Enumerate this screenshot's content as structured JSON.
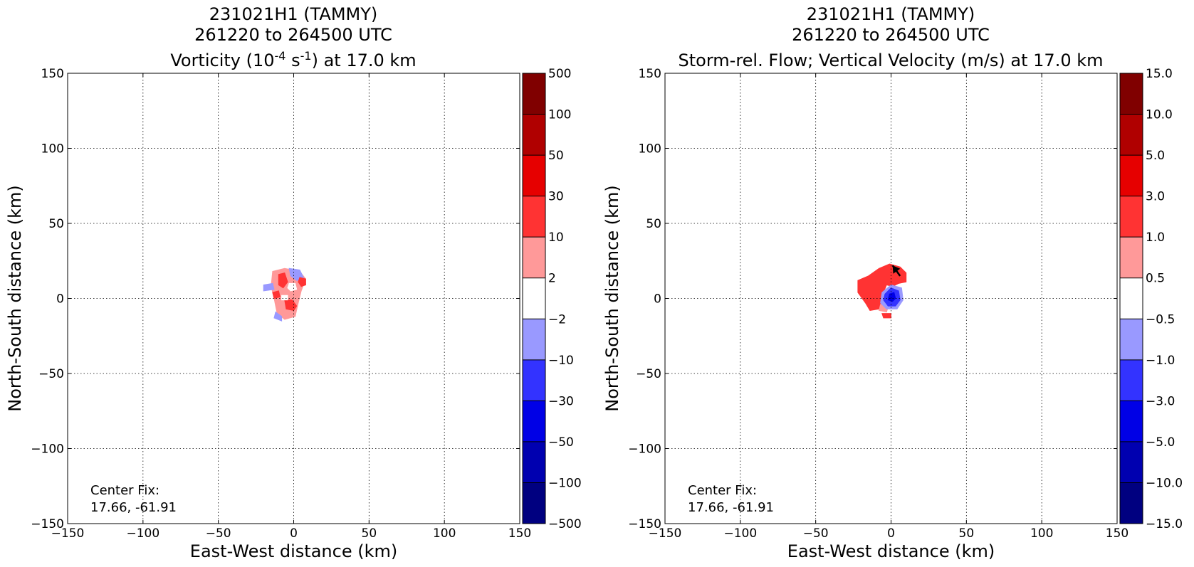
{
  "chart_data": [
    {
      "type": "heatmap",
      "title": [
        "231021H1 (TAMMY)",
        "261220 to 264500 UTC"
      ],
      "title_line3": {
        "pre": "Vorticity (10",
        "sup1": "-4",
        "mid": " s",
        "sup2": "-1",
        "post": ") at 17.0 km"
      },
      "xlabel": "East-West distance (km)",
      "ylabel": "North-South distance (km)",
      "xlim": [
        -150,
        150
      ],
      "ylim": [
        -150,
        150
      ],
      "xticks": [
        -150,
        -100,
        -50,
        0,
        50,
        100,
        150
      ],
      "yticks": [
        -150,
        -100,
        -50,
        0,
        50,
        100,
        150
      ],
      "xtick_labels": [
        "−150",
        "−100",
        "−50",
        "0",
        "50",
        "100",
        "150"
      ],
      "ytick_labels": [
        "−150",
        "−100",
        "−50",
        "0",
        "50",
        "100",
        "150"
      ],
      "grid": true,
      "annotation": [
        "Center Fix:",
        "17.66, -61.91"
      ],
      "colorbar": {
        "labels": [
          "−500",
          "−100",
          "−50",
          "−30",
          "−10",
          "−2",
          "2",
          "10",
          "30",
          "50",
          "100",
          "500"
        ],
        "colors": [
          "#000080",
          "#0000b0",
          "#0000e6",
          "#3333ff",
          "#9999ff",
          "#ffffff",
          "#ff9999",
          "#ff3333",
          "#e60000",
          "#b00000",
          "#800000"
        ]
      },
      "blobs": [
        {
          "level": "#ff9999",
          "points": [
            [
              -14,
              18
            ],
            [
              -6,
              20
            ],
            [
              4,
              18
            ],
            [
              8,
              13
            ],
            [
              5,
              5
            ],
            [
              3,
              -3
            ],
            [
              1,
              -12
            ],
            [
              -6,
              -14
            ],
            [
              -11,
              -10
            ],
            [
              -13,
              0
            ],
            [
              -15,
              8
            ]
          ]
        },
        {
          "level": "#9999ff",
          "points": [
            [
              -20,
              9
            ],
            [
              -14,
              10
            ],
            [
              -13,
              6
            ],
            [
              -20,
              5
            ]
          ]
        },
        {
          "level": "#9999ff",
          "points": [
            [
              -3,
              20
            ],
            [
              4,
              19
            ],
            [
              7,
              13
            ],
            [
              2,
              12
            ],
            [
              -2,
              15
            ]
          ]
        },
        {
          "level": "#9999ff",
          "points": [
            [
              -12,
              -9
            ],
            [
              -8,
              -12
            ],
            [
              -8,
              -15
            ],
            [
              -13,
              -13
            ]
          ]
        },
        {
          "level": "#9999ff",
          "points": [
            [
              -5,
              -2
            ],
            [
              0,
              -3
            ],
            [
              1,
              -6
            ],
            [
              -4,
              -6
            ]
          ]
        },
        {
          "level": "#ff3333",
          "points": [
            [
              -10,
              16
            ],
            [
              -6,
              17
            ],
            [
              -4,
              11
            ],
            [
              -7,
              7
            ],
            [
              -10,
              9
            ]
          ]
        },
        {
          "level": "#ff3333",
          "points": [
            [
              4,
              14
            ],
            [
              8,
              13
            ],
            [
              8,
              9
            ],
            [
              5,
              8
            ],
            [
              3,
              11
            ]
          ]
        },
        {
          "level": "#ff3333",
          "points": [
            [
              -6,
              -1
            ],
            [
              -1,
              -1
            ],
            [
              2,
              -5
            ],
            [
              0,
              -8
            ],
            [
              -5,
              -7
            ]
          ]
        },
        {
          "level": "#ff3333",
          "points": [
            [
              -14,
              4
            ],
            [
              -10,
              5
            ],
            [
              -9,
              1
            ],
            [
              -13,
              0
            ]
          ]
        },
        {
          "level": "#ffffff",
          "points": [
            [
              -3,
              10
            ],
            [
              1,
              10
            ],
            [
              2,
              6
            ],
            [
              -2,
              5
            ],
            [
              -4,
              7
            ]
          ]
        },
        {
          "level": "#ffffff",
          "points": [
            [
              -8,
              2
            ],
            [
              -4,
              2
            ],
            [
              -4,
              -1
            ],
            [
              -8,
              -1
            ]
          ]
        }
      ]
    },
    {
      "type": "heatmap",
      "title": [
        "231021H1 (TAMMY)",
        "261220 to 264500 UTC"
      ],
      "title_line3": {
        "pre": "Storm-rel. Flow; Vertical Velocity (m/s) at 17.0 km",
        "sup1": "",
        "mid": "",
        "sup2": "",
        "post": ""
      },
      "xlabel": "East-West distance (km)",
      "ylabel": "North-South distance (km)",
      "xlim": [
        -150,
        150
      ],
      "ylim": [
        -150,
        150
      ],
      "xticks": [
        -150,
        -100,
        -50,
        0,
        50,
        100,
        150
      ],
      "yticks": [
        -150,
        -100,
        -50,
        0,
        50,
        100,
        150
      ],
      "xtick_labels": [
        "−150",
        "−100",
        "−50",
        "0",
        "50",
        "100",
        "150"
      ],
      "ytick_labels": [
        "−150",
        "−100",
        "−50",
        "0",
        "50",
        "100",
        "150"
      ],
      "grid": true,
      "annotation": [
        "Center Fix:",
        "17.66, -61.91"
      ],
      "colorbar": {
        "labels": [
          "−15.0",
          "−10.0",
          "−5.0",
          "−3.0",
          "−1.0",
          "−0.5",
          "0.5",
          "1.0",
          "3.0",
          "5.0",
          "10.0",
          "15.0"
        ],
        "colors": [
          "#000080",
          "#0000b0",
          "#0000e6",
          "#3333ff",
          "#9999ff",
          "#ffffff",
          "#ff9999",
          "#ff3333",
          "#e60000",
          "#b00000",
          "#800000"
        ]
      },
      "blobs": [
        {
          "level": "#ff3333",
          "points": [
            [
              -22,
              12
            ],
            [
              -15,
              15
            ],
            [
              -8,
              20
            ],
            [
              -1,
              23
            ],
            [
              6,
              21
            ],
            [
              10,
              17
            ],
            [
              10,
              11
            ],
            [
              5,
              10
            ],
            [
              1,
              8
            ],
            [
              -3,
              9
            ],
            [
              -5,
              4
            ],
            [
              -6,
              -2
            ],
            [
              -8,
              -7
            ],
            [
              -14,
              -8
            ],
            [
              -17,
              -3
            ],
            [
              -22,
              4
            ]
          ]
        },
        {
          "level": "#ff9999",
          "points": [
            [
              -7,
              -4
            ],
            [
              -2,
              -6
            ],
            [
              -3,
              -9
            ],
            [
              -8,
              -8
            ]
          ]
        },
        {
          "level": "#ff3333",
          "points": [
            [
              -6,
              -10
            ],
            [
              0,
              -10
            ],
            [
              0,
              -13
            ],
            [
              -5,
              -13
            ]
          ]
        },
        {
          "level": "#9999ff",
          "points": [
            [
              -6,
              4
            ],
            [
              0,
              9
            ],
            [
              7,
              7
            ],
            [
              8,
              -1
            ],
            [
              4,
              -7
            ],
            [
              -3,
              -7
            ],
            [
              -7,
              -3
            ]
          ]
        },
        {
          "level": "#3333ff",
          "points": [
            [
              -4,
              3
            ],
            [
              0,
              7
            ],
            [
              5,
              5
            ],
            [
              6,
              -1
            ],
            [
              3,
              -5
            ],
            [
              -2,
              -5
            ],
            [
              -5,
              -1
            ]
          ]
        },
        {
          "level": "#0000e6",
          "points": [
            [
              -1,
              3
            ],
            [
              2,
              4
            ],
            [
              3,
              0
            ],
            [
              1,
              -2
            ],
            [
              -2,
              -1
            ]
          ]
        }
      ],
      "arrow": {
        "from": [
          6,
          15
        ],
        "to": [
          1,
          22
        ]
      }
    }
  ]
}
